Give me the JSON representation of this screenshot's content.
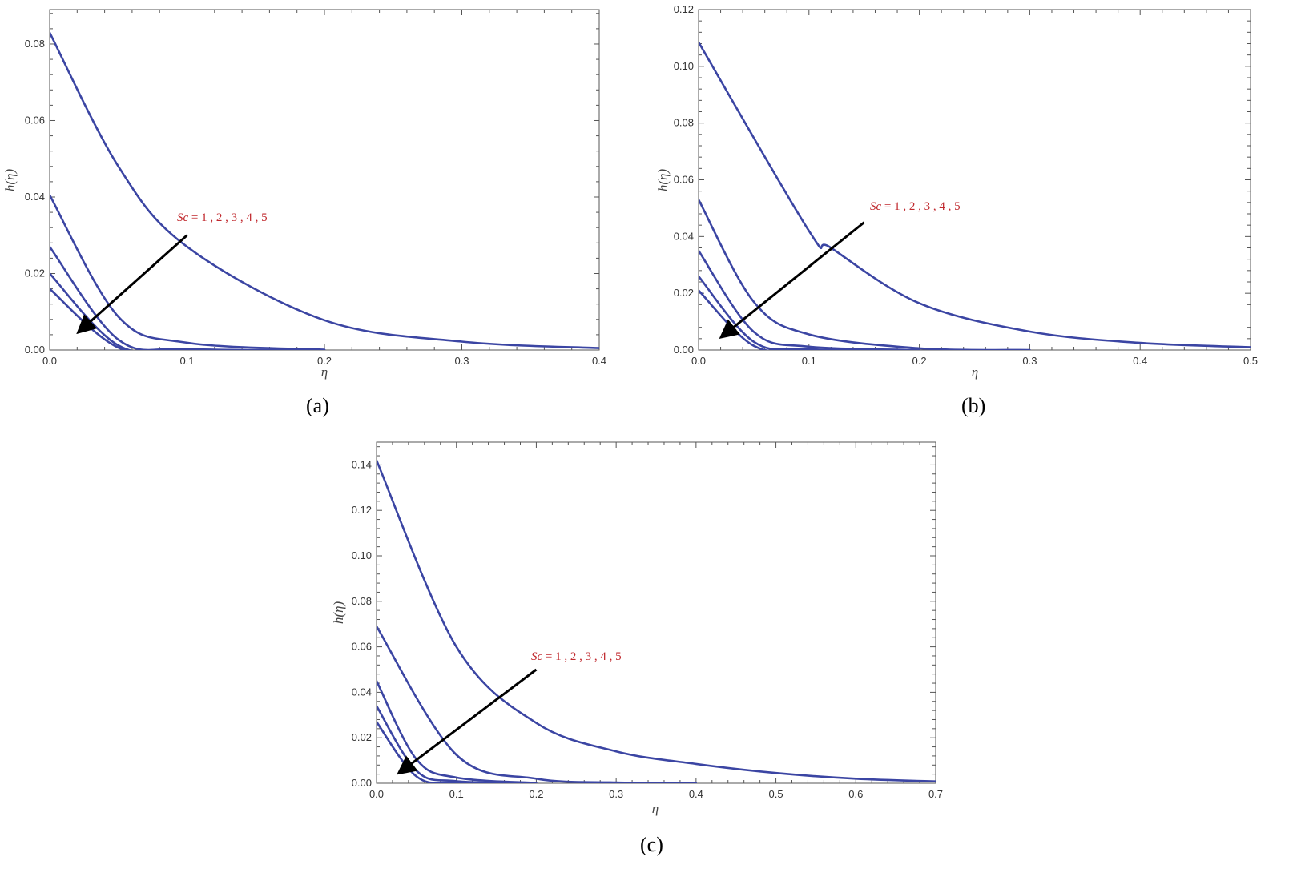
{
  "colors": {
    "curve": "#3b45a3",
    "annotation": "#c0282d",
    "arrow": "#000000",
    "frame": "#555555"
  },
  "annotation": {
    "var": "Sc",
    "rest": " = 1 , 2 , 3 , 4 , 5"
  },
  "chart_data": [
    {
      "type": "line",
      "caption": "(a)",
      "xlabel": "η",
      "ylabel": "h(η)",
      "xlim": [
        0,
        0.4
      ],
      "ylim": [
        0,
        0.089
      ],
      "xticks": [
        0.0,
        0.1,
        0.2,
        0.3,
        0.4
      ],
      "xtick_labels": [
        "0.0",
        "0.1",
        "0.2",
        "0.3",
        "0.4"
      ],
      "yticks": [
        0.0,
        0.02,
        0.04,
        0.06,
        0.08
      ],
      "ytick_labels": [
        "0.00",
        "0.02",
        "0.04",
        "0.06",
        "0.08"
      ],
      "series": [
        {
          "values_at": [
            0.0,
            0.05,
            0.1,
            0.2,
            0.3,
            0.4
          ],
          "values": [
            0.083,
            0.048,
            0.027,
            0.0078,
            0.0022,
            0.0005
          ]
        },
        {
          "values_at": [
            0.0,
            0.05,
            0.1,
            0.2
          ],
          "values": [
            0.0405,
            0.0087,
            0.0019,
            0.0001
          ]
        },
        {
          "values_at": [
            0.0,
            0.05,
            0.1,
            0.2
          ],
          "values": [
            0.027,
            0.0027,
            0.0003,
            0.0
          ]
        },
        {
          "values_at": [
            0.0,
            0.05,
            0.1,
            0.2
          ],
          "values": [
            0.02,
            0.0012,
            0.0001,
            0.0
          ]
        },
        {
          "values_at": [
            0.0,
            0.05,
            0.1,
            0.2
          ],
          "values": [
            0.016,
            0.0006,
            0.0,
            0.0
          ]
        }
      ],
      "arrow": {
        "from": [
          0.1,
          0.03
        ],
        "to": [
          0.022,
          0.005
        ]
      }
    },
    {
      "type": "line",
      "caption": "(b)",
      "xlabel": "η",
      "ylabel": "h(η)",
      "xlim": [
        0,
        0.5
      ],
      "ylim": [
        0,
        0.12
      ],
      "xticks": [
        0.0,
        0.1,
        0.2,
        0.3,
        0.4,
        0.5
      ],
      "xtick_labels": [
        "0.0",
        "0.1",
        "0.2",
        "0.3",
        "0.4",
        "0.5"
      ],
      "yticks": [
        0.0,
        0.02,
        0.04,
        0.06,
        0.08,
        0.1,
        0.12
      ],
      "ytick_labels": [
        "0.00",
        "0.02",
        "0.04",
        "0.06",
        "0.08",
        "0.10",
        "0.12"
      ],
      "series": [
        {
          "values_at": [
            0.0,
            0.1,
            0.12,
            0.2,
            0.3,
            0.4,
            0.5
          ],
          "values": [
            0.1085,
            0.042,
            0.036,
            0.0165,
            0.0065,
            0.0025,
            0.001
          ]
        },
        {
          "values_at": [
            0.0,
            0.05,
            0.1,
            0.2,
            0.3
          ],
          "values": [
            0.053,
            0.017,
            0.0055,
            0.0006,
            0.0
          ]
        },
        {
          "values_at": [
            0.0,
            0.05,
            0.1,
            0.2
          ],
          "values": [
            0.035,
            0.0064,
            0.0012,
            0.0
          ]
        },
        {
          "values_at": [
            0.0,
            0.05,
            0.1,
            0.2
          ],
          "values": [
            0.026,
            0.0029,
            0.0003,
            0.0
          ]
        },
        {
          "values_at": [
            0.0,
            0.05,
            0.1,
            0.2
          ],
          "values": [
            0.021,
            0.0015,
            0.0001,
            0.0
          ]
        }
      ],
      "arrow": {
        "from": [
          0.15,
          0.045
        ],
        "to": [
          0.022,
          0.005
        ]
      }
    },
    {
      "type": "line",
      "caption": "(c)",
      "xlabel": "η",
      "ylabel": "h(η)",
      "xlim": [
        0,
        0.7
      ],
      "ylim": [
        0,
        0.15
      ],
      "xticks": [
        0.0,
        0.1,
        0.2,
        0.3,
        0.4,
        0.5,
        0.6,
        0.7
      ],
      "xtick_labels": [
        "0.0",
        "0.1",
        "0.2",
        "0.3",
        "0.4",
        "0.5",
        "0.6",
        "0.7"
      ],
      "yticks": [
        0.0,
        0.02,
        0.04,
        0.06,
        0.08,
        0.1,
        0.12,
        0.14
      ],
      "ytick_labels": [
        "0.00",
        "0.02",
        "0.04",
        "0.06",
        "0.08",
        "0.10",
        "0.12",
        "0.14"
      ],
      "series": [
        {
          "values_at": [
            0.0,
            0.1,
            0.2,
            0.3,
            0.4,
            0.5,
            0.6,
            0.7
          ],
          "values": [
            0.142,
            0.06,
            0.0265,
            0.014,
            0.0085,
            0.0045,
            0.002,
            0.0008
          ]
        },
        {
          "values_at": [
            0.0,
            0.1,
            0.2,
            0.3,
            0.4
          ],
          "values": [
            0.069,
            0.0125,
            0.002,
            0.0003,
            0.0
          ]
        },
        {
          "values_at": [
            0.0,
            0.05,
            0.1,
            0.2
          ],
          "values": [
            0.045,
            0.0105,
            0.0025,
            0.0001
          ]
        },
        {
          "values_at": [
            0.0,
            0.05,
            0.1,
            0.2
          ],
          "values": [
            0.034,
            0.0055,
            0.0009,
            0.0
          ]
        },
        {
          "values_at": [
            0.0,
            0.05,
            0.1,
            0.2
          ],
          "values": [
            0.027,
            0.003,
            0.0003,
            0.0
          ]
        }
      ],
      "arrow": {
        "from": [
          0.2,
          0.05
        ],
        "to": [
          0.03,
          0.005
        ]
      }
    }
  ]
}
